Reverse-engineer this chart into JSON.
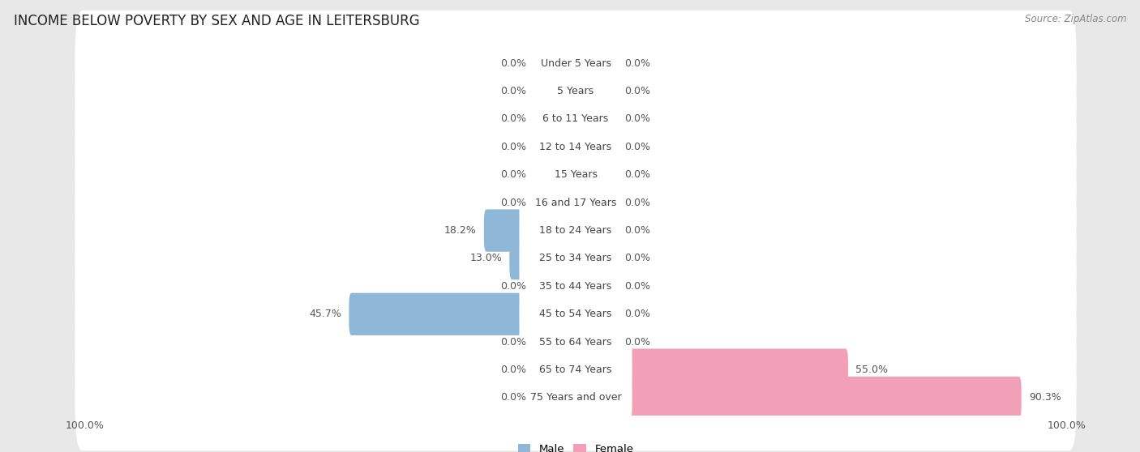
{
  "title": "INCOME BELOW POVERTY BY SEX AND AGE IN LEITERSBURG",
  "source": "Source: ZipAtlas.com",
  "categories": [
    "Under 5 Years",
    "5 Years",
    "6 to 11 Years",
    "12 to 14 Years",
    "15 Years",
    "16 and 17 Years",
    "18 to 24 Years",
    "25 to 34 Years",
    "35 to 44 Years",
    "45 to 54 Years",
    "55 to 64 Years",
    "65 to 74 Years",
    "75 Years and over"
  ],
  "male_values": [
    0.0,
    0.0,
    0.0,
    0.0,
    0.0,
    0.0,
    18.2,
    13.0,
    0.0,
    45.7,
    0.0,
    0.0,
    0.0
  ],
  "female_values": [
    0.0,
    0.0,
    0.0,
    0.0,
    0.0,
    0.0,
    0.0,
    0.0,
    0.0,
    0.0,
    0.0,
    55.0,
    90.3
  ],
  "male_color": "#8fb8d8",
  "female_color": "#f2a0b8",
  "male_color_stub": "#b8d0e8",
  "female_color_stub": "#f8c8d8",
  "male_label": "Male",
  "female_label": "Female",
  "max_value": 100.0,
  "stub_size": 8.0,
  "bg_color": "#e8e8e8",
  "row_bg_color": "#ffffff",
  "title_fontsize": 12,
  "label_fontsize": 9,
  "source_fontsize": 8.5,
  "axis_label_fontsize": 9,
  "value_label_color": "#555555",
  "cat_label_color": "#444444"
}
